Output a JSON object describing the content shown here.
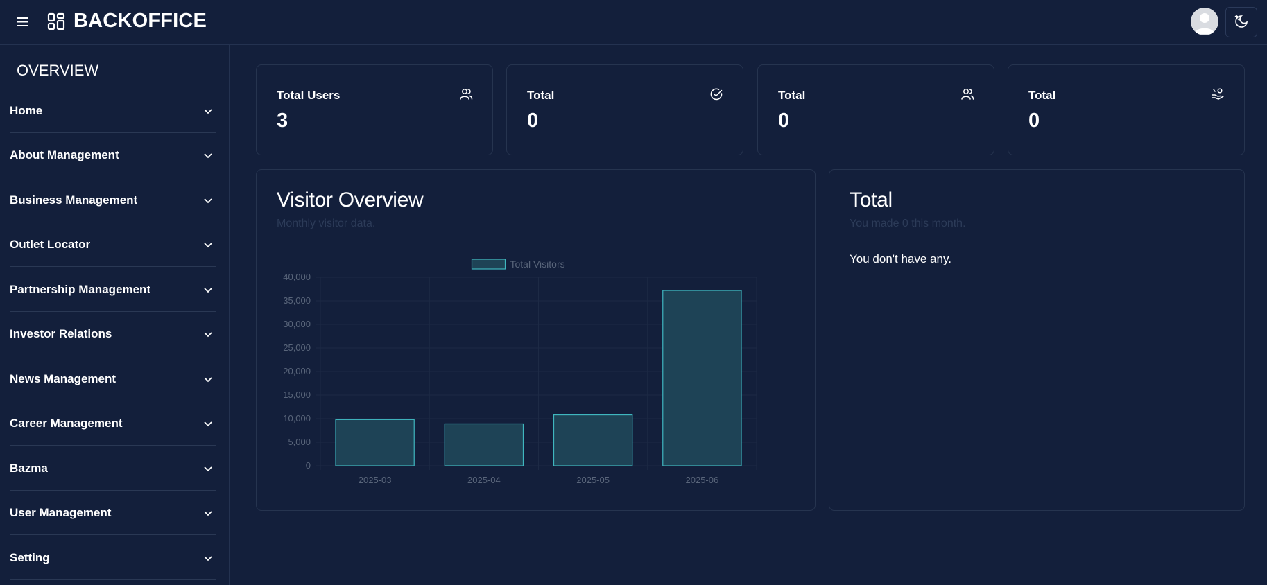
{
  "header": {
    "brand": "BACKOFFICE",
    "menu_icon": "hamburger-menu-icon",
    "brand_icon": "grid-layout-icon",
    "avatar_icon": "user-avatar-icon",
    "theme_icon": "moon-stars-icon"
  },
  "sidebar": {
    "title": "OVERVIEW",
    "items": [
      {
        "label": "Home"
      },
      {
        "label": "About Management"
      },
      {
        "label": "Business Management"
      },
      {
        "label": "Outlet Locator"
      },
      {
        "label": "Partnership Management"
      },
      {
        "label": "Investor Relations"
      },
      {
        "label": "News Management"
      },
      {
        "label": "Career Management"
      },
      {
        "label": "Bazma"
      },
      {
        "label": "User Management"
      },
      {
        "label": "Setting"
      }
    ]
  },
  "stats": [
    {
      "label": "Total Users",
      "value": "3",
      "icon": "users-icon"
    },
    {
      "label": "Total",
      "value": "0",
      "icon": "check-circle-icon"
    },
    {
      "label": "Total",
      "value": "0",
      "icon": "users-icon"
    },
    {
      "label": "Total",
      "value": "0",
      "icon": "hand-coins-icon"
    }
  ],
  "visitor": {
    "title": "Visitor Overview",
    "subtitle": "Monthly visitor data."
  },
  "total_panel": {
    "title": "Total",
    "subtitle": "You made 0 this month.",
    "empty": "You don't have any."
  },
  "colors": {
    "background": "#131f3b",
    "bar_fill": "#1e4356",
    "bar_stroke": "#3fb6bf"
  },
  "chart_data": {
    "type": "bar",
    "categories": [
      "2025-03",
      "2025-04",
      "2025-05",
      "2025-06"
    ],
    "series": [
      {
        "name": "Total Visitors",
        "values": [
          9800,
          8900,
          10800,
          37200
        ]
      }
    ],
    "ylim": [
      0,
      40000
    ],
    "yticks": [
      "0",
      "5,000",
      "10,000",
      "15,000",
      "20,000",
      "25,000",
      "30,000",
      "35,000",
      "40,000"
    ],
    "ytick_values": [
      0,
      5000,
      10000,
      15000,
      20000,
      25000,
      30000,
      35000,
      40000
    ],
    "grid": true,
    "legend": "top-center"
  }
}
